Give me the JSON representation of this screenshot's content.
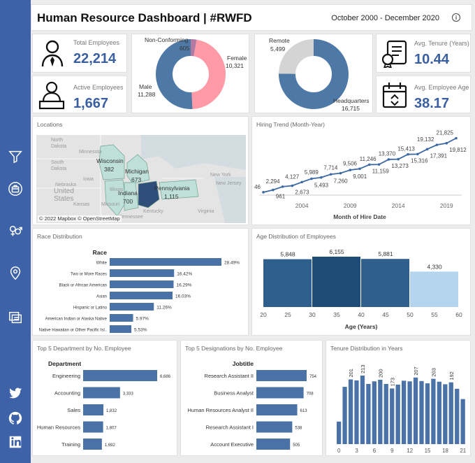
{
  "header": {
    "title": "Human Resource Dashboard | #RWFD",
    "date_range": "October 2000 - December 2020",
    "info": "i"
  },
  "kpi": {
    "total": {
      "label": "Total Employees",
      "value": "22,214"
    },
    "active": {
      "label": "Active Employees",
      "value": "1,667"
    },
    "tenure": {
      "label": "Avg. Tenure (Years)",
      "value": "10.44"
    },
    "age": {
      "label": "Avg. Employee Age",
      "value": "38.17"
    }
  },
  "gender": {
    "female": {
      "label": "Female",
      "value": 10321,
      "text": "10,321",
      "color": "#ff9aa6"
    },
    "male": {
      "label": "Male",
      "value": 11288,
      "text": "11,288",
      "color": "#4e79a7"
    },
    "nonconf": {
      "label": "Non-Conforming",
      "value": 605,
      "text": "605",
      "color": "#b07aa1"
    }
  },
  "location_type": {
    "remote": {
      "label": "Remote",
      "value": 5499,
      "text": "5,499",
      "color": "#d4d4d4"
    },
    "hq": {
      "label": "Headquarters",
      "value": 16715,
      "text": "16,715",
      "color": "#4e79a7"
    }
  },
  "locations": {
    "title": "Locations",
    "copyright": "© 2022 Mapbox © OpenStreetMap",
    "states": [
      {
        "name": "Wisconsin",
        "value": "382"
      },
      {
        "name": "Michigan",
        "value": "673"
      },
      {
        "name": "Indiana",
        "value": "700"
      },
      {
        "name": "Pennsylvania",
        "value": "1,115"
      }
    ],
    "bg_labels": [
      "North",
      "Dakota",
      "South",
      "Dakota",
      "Minnesota",
      "Iowa",
      "Nebraska",
      "Kansas",
      "United",
      "States",
      "Missouri",
      "Illinois",
      "Kentucky",
      "New York",
      "New Jersey",
      "Virginia",
      "Tennessee"
    ]
  },
  "sidebar": {
    "icons": [
      "filter-icon",
      "briefcase-icon",
      "gender-icon",
      "location-pin-icon",
      "cards-icon",
      "twitter-icon",
      "github-icon",
      "linkedin-icon"
    ]
  },
  "chart_data": [
    {
      "id": "hiring",
      "type": "line",
      "title": "Hiring Trend (Month-Year)",
      "xlabel": "Month of Hire Date",
      "x": [
        2000,
        2001,
        2002,
        2003,
        2004,
        2005,
        2006,
        2007,
        2008,
        2009,
        2010,
        2011,
        2012,
        2013,
        2014,
        2015,
        2016,
        2017,
        2018,
        2019,
        2020
      ],
      "values": [
        46,
        961,
        2294,
        2673,
        4127,
        5493,
        5989,
        7260,
        7714,
        9001,
        9506,
        11159,
        11246,
        13273,
        13370,
        15316,
        15413,
        17391,
        19132,
        19812,
        21825
      ],
      "labels": [
        "46",
        "961",
        "2,294",
        "2,673",
        "4,127",
        "5,493",
        "5,989",
        "7,260",
        "7,714",
        "9,001",
        "9,506",
        "11,159",
        "11,246",
        "13,273",
        "13,370",
        "15,316",
        "15,413",
        "17,391",
        "19,132",
        "19,812",
        "21,825"
      ],
      "xticks": [
        "2004",
        "2009",
        "2014",
        "2019"
      ]
    },
    {
      "id": "race",
      "type": "bar",
      "title": "Race Distribution",
      "header": "Race",
      "categories": [
        "White",
        "Two or More Races",
        "Black or African American",
        "Asian",
        "Hispanic or Latino",
        "American Indian or Alaska Native",
        "Native Hawaiian or Other Pacific Isl.."
      ],
      "values": [
        28.49,
        16.42,
        16.29,
        16.03,
        11.26,
        5.97,
        5.53
      ],
      "labels": [
        "28.49%",
        "16.42%",
        "16.29%",
        "16.03%",
        "11.26%",
        "5.97%",
        "5.53%"
      ]
    },
    {
      "id": "age",
      "type": "bar",
      "title": "Age Distribution of Employees",
      "xlabel": "Age (Years)",
      "bins": [
        [
          20,
          30
        ],
        [
          30,
          40
        ],
        [
          40,
          50
        ],
        [
          50,
          60
        ]
      ],
      "values": [
        5848,
        6155,
        5881,
        4330
      ],
      "labels": [
        "5,848",
        "6,155",
        "5,881",
        "4,330"
      ],
      "colors": [
        "#2f5f8d",
        "#1f4b78",
        "#2f5f8d",
        "#b5d5ee"
      ],
      "xticks": [
        "20",
        "25",
        "30",
        "35",
        "40",
        "45",
        "50",
        "55",
        "60"
      ]
    },
    {
      "id": "dept",
      "type": "bar",
      "title": "Top 5 Department by No. Employee",
      "header": "Department",
      "categories": [
        "Engineering",
        "Accounting",
        "Sales",
        "Human Resources",
        "Training"
      ],
      "values": [
        6686,
        3333,
        1832,
        1807,
        1692
      ],
      "labels": [
        "6,686",
        "3,333",
        "1,832",
        "1,807",
        "1,692"
      ]
    },
    {
      "id": "jobs",
      "type": "bar",
      "title": "Top 5 Designations by No. Employee",
      "header": "Jobtitle",
      "categories": [
        "Research Assistant II",
        "Business Analyst",
        "Human Resources Analyst II",
        "Research Assistant I",
        "Account Executive"
      ],
      "values": [
        754,
        708,
        613,
        538,
        505
      ],
      "labels": [
        "754",
        "708",
        "613",
        "538",
        "505"
      ]
    },
    {
      "id": "tenure",
      "type": "bar",
      "title": "Tenure Distribution in Years",
      "x": [
        0,
        1,
        2,
        3,
        4,
        5,
        6,
        7,
        8,
        9,
        10,
        11,
        12,
        13,
        14,
        15,
        16,
        17,
        18,
        19,
        20,
        21
      ],
      "values": [
        70,
        178,
        201,
        198,
        213,
        187,
        195,
        200,
        187,
        173,
        185,
        197,
        195,
        207,
        196,
        189,
        203,
        194,
        186,
        192,
        172,
        140
      ],
      "value_labels": [
        {
          "i": 2,
          "text": "201"
        },
        {
          "i": 4,
          "text": "213"
        },
        {
          "i": 7,
          "text": "200"
        },
        {
          "i": 9,
          "text": "173"
        },
        {
          "i": 13,
          "text": "207"
        },
        {
          "i": 16,
          "text": "203"
        },
        {
          "i": 19,
          "text": "192"
        }
      ],
      "xticks": [
        "0",
        "3",
        "6",
        "9",
        "12",
        "15",
        "18",
        "21"
      ]
    }
  ]
}
